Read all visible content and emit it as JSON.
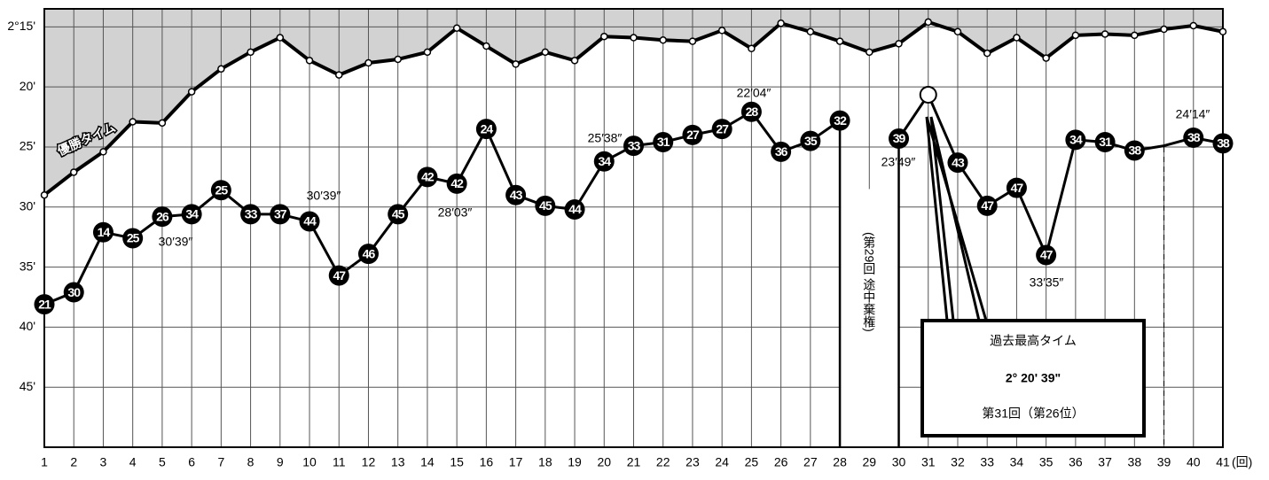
{
  "chart_data": {
    "type": "line",
    "categories": [
      "1",
      "2",
      "3",
      "4",
      "5",
      "6",
      "7",
      "8",
      "9",
      "10",
      "11",
      "12",
      "13",
      "14",
      "15",
      "16",
      "17",
      "18",
      "19",
      "20",
      "21",
      "22",
      "23",
      "24",
      "25",
      "26",
      "27",
      "28",
      "29",
      "30",
      "31",
      "32",
      "33",
      "34",
      "35",
      "36",
      "37",
      "38",
      "39",
      "40",
      "41"
    ],
    "x_unit": "(回)",
    "ylim": [
      13.5,
      50
    ],
    "inverted": true,
    "yticks": [
      {
        "value": 15,
        "label": "2°15'"
      },
      {
        "value": 20,
        "label": "20'"
      },
      {
        "value": 25,
        "label": "25'"
      },
      {
        "value": 30,
        "label": "30'"
      },
      {
        "value": 35,
        "label": "35'"
      },
      {
        "value": 40,
        "label": "40'"
      },
      {
        "value": 45,
        "label": "45'"
      }
    ],
    "grid": true,
    "series": [
      {
        "name": "優勝タイム",
        "color": "#000000",
        "area_color": "#d2d2d2",
        "values": [
          29.0,
          27.1,
          25.4,
          22.9,
          23.0,
          20.4,
          18.5,
          17.1,
          15.9,
          17.8,
          19.0,
          18.0,
          17.7,
          17.1,
          15.1,
          16.6,
          18.1,
          17.1,
          17.8,
          15.8,
          15.9,
          16.1,
          16.2,
          15.3,
          16.8,
          14.7,
          15.4,
          16.2,
          17.1,
          16.4,
          14.6,
          15.4,
          17.2,
          15.9,
          17.6,
          15.7,
          15.6,
          15.7,
          15.2,
          14.9,
          15.4
        ]
      },
      {
        "color": "#000000",
        "values": [
          38.1,
          37.1,
          32.1,
          32.6,
          30.8,
          30.6,
          28.6,
          30.6,
          30.6,
          31.2,
          35.7,
          33.9,
          30.6,
          27.5,
          28.05,
          23.5,
          29.0,
          29.9,
          30.2,
          26.2,
          24.9,
          24.6,
          24.0,
          23.5,
          22.07,
          25.4,
          24.5,
          22.8,
          null,
          24.3,
          20.65,
          26.3,
          29.9,
          28.4,
          34.0,
          24.4,
          24.6,
          25.3,
          24.9,
          24.23,
          24.7
        ],
        "ranks": [
          "21",
          "30",
          "14",
          "25",
          "26",
          "34",
          "25",
          "33",
          "37",
          "44",
          "47",
          "46",
          "45",
          "42",
          "42",
          "24",
          "43",
          "45",
          "44",
          "34",
          "33",
          "31",
          "27",
          "27",
          "28",
          "36",
          "35",
          "32",
          null,
          "39",
          null,
          "43",
          "47",
          "47",
          "47",
          "34",
          "31",
          "38",
          null,
          "38",
          "38"
        ]
      }
    ],
    "annotations": [
      "30′39″",
      "30′39″",
      "28′03″",
      "25′38″",
      "22′04″",
      "23′49″",
      "33′35″",
      "24′14″",
      "(第29回 途中棄権)"
    ],
    "callout": {
      "title": "過去最高タイム",
      "time": "2° 20' 39\"",
      "note": "第31回（第26位）"
    }
  }
}
